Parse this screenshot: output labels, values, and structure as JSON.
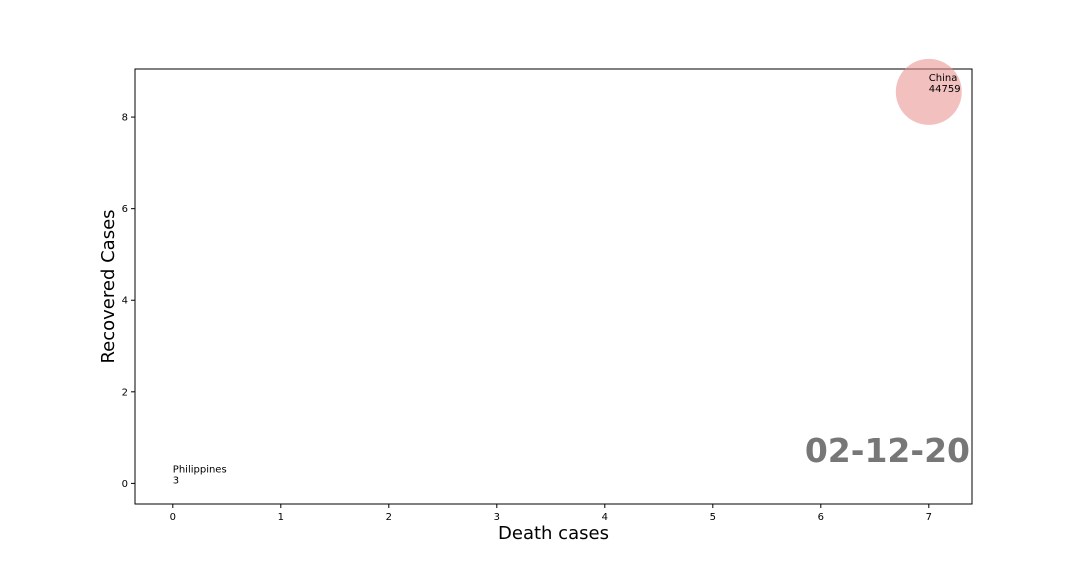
{
  "chart_data": {
    "type": "scatter",
    "title": "",
    "xlabel": "Death cases",
    "ylabel": "Recovered Cases",
    "xlim": [
      -0.35,
      7.4
    ],
    "ylim": [
      -0.45,
      9.05
    ],
    "xticks": [
      0,
      1,
      2,
      3,
      4,
      5,
      6,
      7
    ],
    "yticks": [
      0,
      2,
      4,
      6,
      8
    ],
    "grid": false,
    "date_label": "02-12-20",
    "points": [
      {
        "label": "Philippines",
        "value_label": "3",
        "x": 0,
        "y": 0,
        "size": 3,
        "color": "#e88e8a"
      },
      {
        "label": "China",
        "value_label": "44759",
        "x": 7,
        "y": 8.55,
        "size": 44759,
        "color": "#e88e8a"
      }
    ]
  }
}
